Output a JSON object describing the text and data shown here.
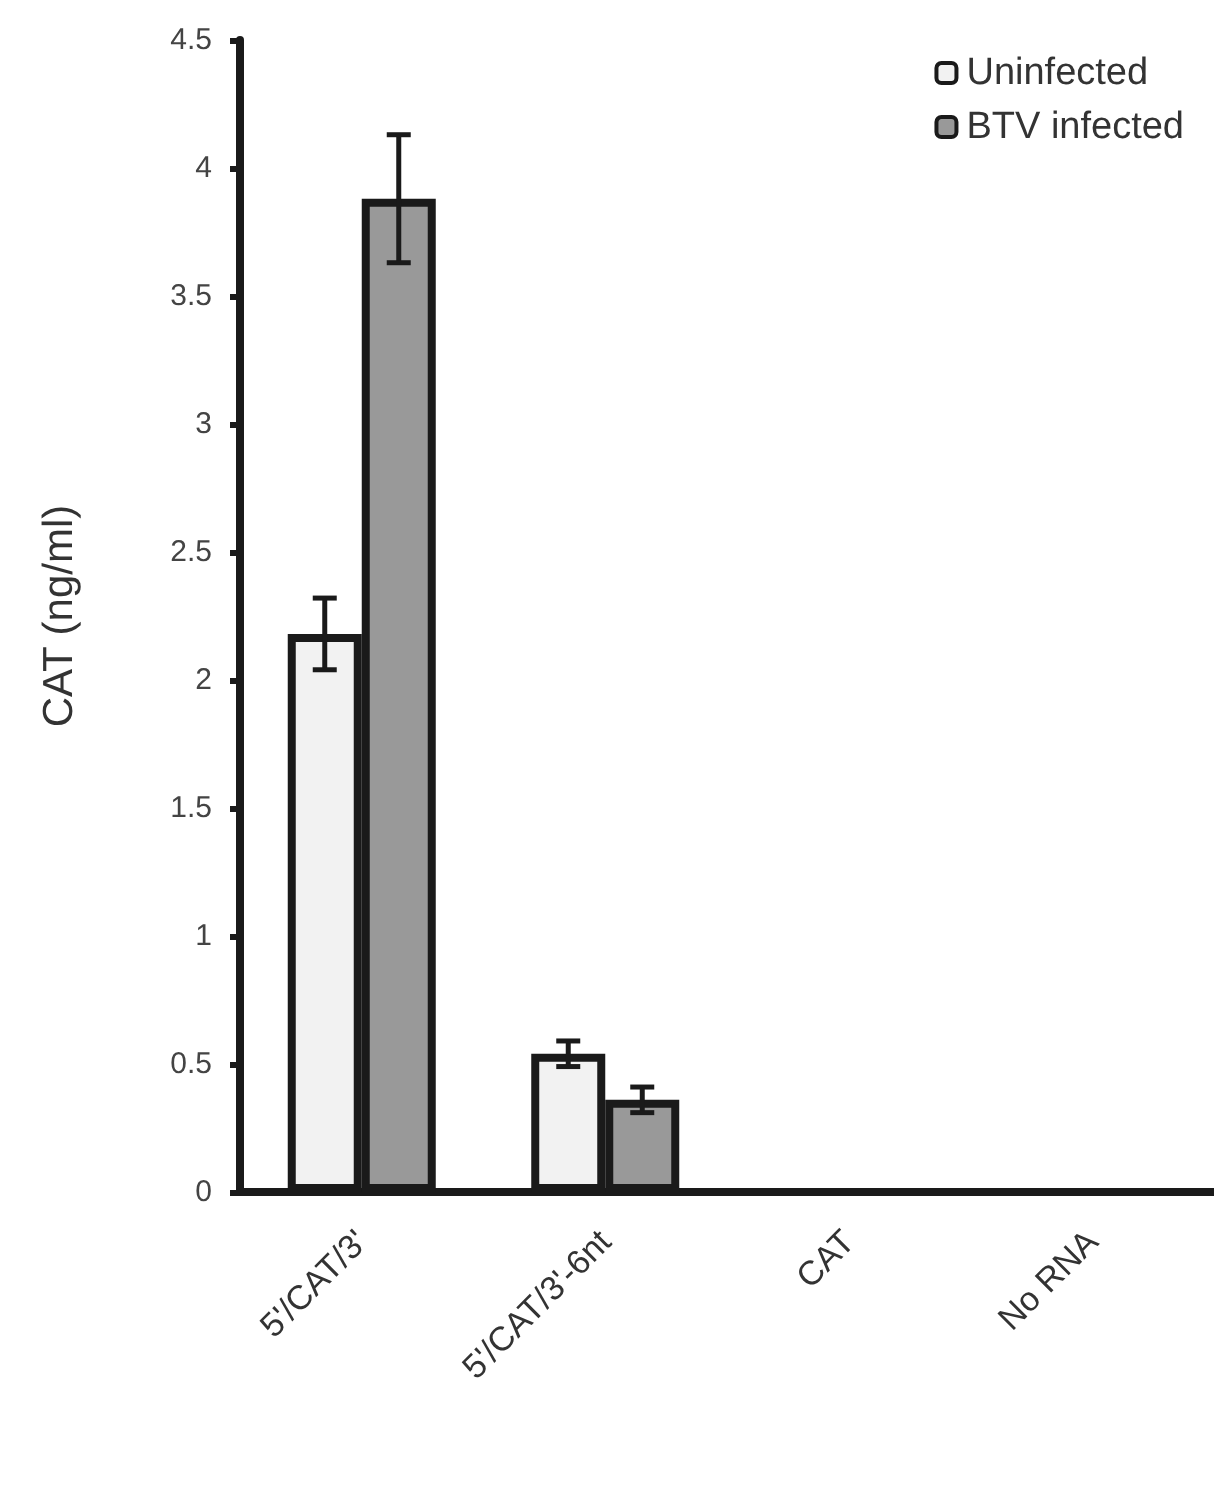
{
  "chart_data": {
    "type": "bar",
    "ylabel": "CAT (ng/ml)",
    "categories": [
      "5'/CAT/3'",
      "5'/CAT/3'-6nt",
      "CAT",
      "No RNA"
    ],
    "series": [
      {
        "name": "Uninfected",
        "color": "#f2f2f2",
        "values": [
          2.18,
          0.54,
          0,
          0
        ],
        "errors": [
          0.14,
          0.05,
          null,
          null
        ]
      },
      {
        "name": "BTV infected",
        "color": "#999999",
        "values": [
          3.88,
          0.36,
          0,
          0
        ],
        "errors": [
          0.25,
          0.05,
          null,
          null
        ]
      }
    ],
    "ylim": [
      0,
      4.5
    ],
    "yticks": [
      0,
      0.5,
      1,
      1.5,
      2,
      2.5,
      3,
      3.5,
      4,
      4.5
    ],
    "grid": false,
    "legend": "top right"
  }
}
